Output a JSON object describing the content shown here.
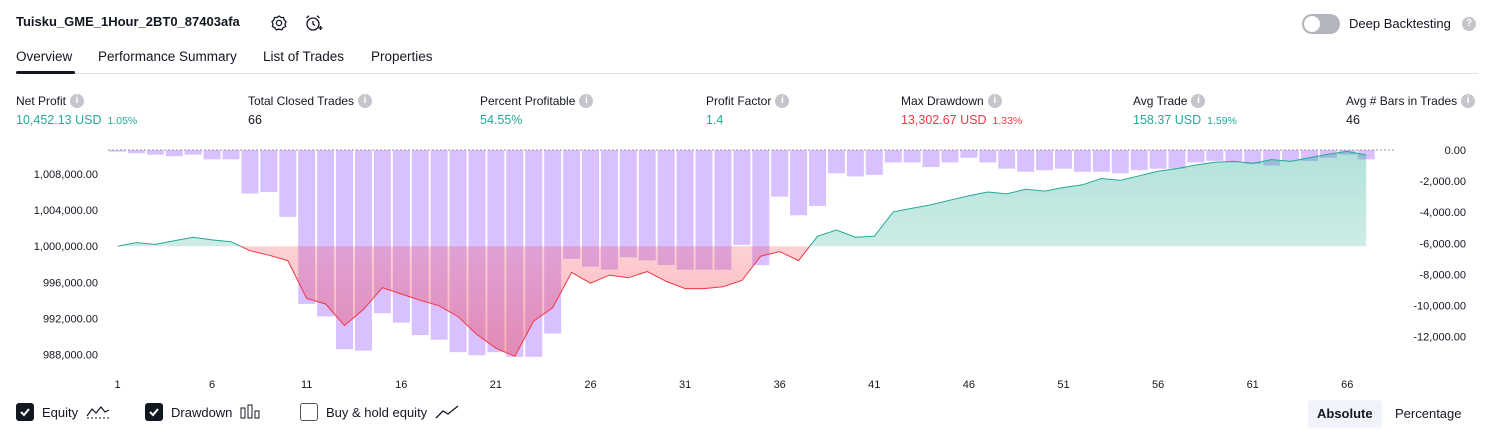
{
  "header": {
    "strategy_name": "Tuisku_GME_1Hour_2BT0_87403afa",
    "settings_icon": "gear-icon",
    "alert_icon": "alarm-clock-plus-icon",
    "deep_backtesting_label": "Deep Backtesting",
    "deep_backtesting_enabled": false,
    "help_glyph": "?"
  },
  "tabs": [
    {
      "label": "Overview",
      "active": true
    },
    {
      "label": "Performance Summary",
      "active": false
    },
    {
      "label": "List of Trades",
      "active": false
    },
    {
      "label": "Properties",
      "active": false
    }
  ],
  "metrics": [
    {
      "label": "Net Profit",
      "value": "10,452.13 USD",
      "pct": "1.05%",
      "color": "#22ab94"
    },
    {
      "label": "Total Closed Trades",
      "value": "66",
      "pct": "",
      "color": "#131722"
    },
    {
      "label": "Percent Profitable",
      "value": "54.55%",
      "pct": "",
      "color": "#22ab94"
    },
    {
      "label": "Profit Factor",
      "value": "1.4",
      "pct": "",
      "color": "#22ab94"
    },
    {
      "label": "Max Drawdown",
      "value": "13,302.67 USD",
      "pct": "1.33%",
      "color": "#f23645"
    },
    {
      "label": "Avg Trade",
      "value": "158.37 USD",
      "pct": "1.59%",
      "color": "#22ab94"
    },
    {
      "label": "Avg # Bars in Trades",
      "value": "46",
      "pct": "",
      "color": "#131722"
    }
  ],
  "chart_data": {
    "type": "line",
    "x_tick_labels": [
      "1",
      "6",
      "11",
      "16",
      "21",
      "26",
      "31",
      "36",
      "41",
      "46",
      "51",
      "56",
      "61",
      "66"
    ],
    "left_axis_ticks": [
      "1,008,000.00",
      "1,004,000.00",
      "1,000,000.00",
      "996,000.00",
      "992,000.00",
      "988,000.00"
    ],
    "right_axis_ticks": [
      "0.00",
      "-2,000.00",
      "-4,000.00",
      "-6,000.00",
      "-8,000.00",
      "-10,000.00",
      "-12,000.00"
    ],
    "left_ylim": [
      986000,
      1011000
    ],
    "right_ylim": [
      -13500,
      0
    ],
    "baseline": 1000000,
    "colors": {
      "equity_up": "#22ab94",
      "equity_down": "#f23645",
      "drawdown": "#c9a7ff"
    },
    "series": [
      {
        "name": "Equity",
        "x": [
          1,
          2,
          3,
          4,
          5,
          6,
          7,
          8,
          9,
          10,
          11,
          12,
          13,
          14,
          15,
          16,
          17,
          18,
          19,
          20,
          21,
          22,
          23,
          24,
          25,
          26,
          27,
          28,
          29,
          30,
          31,
          32,
          33,
          34,
          35,
          36,
          37,
          38,
          39,
          40,
          41,
          42,
          43,
          44,
          45,
          46,
          47,
          48,
          49,
          50,
          51,
          52,
          53,
          54,
          55,
          56,
          57,
          58,
          59,
          60,
          61,
          62,
          63,
          64,
          65,
          66,
          67
        ],
        "values": [
          1000000,
          1000400,
          1000200,
          1000600,
          1001000,
          1000700,
          1000500,
          999500,
          999000,
          998400,
          994200,
          993600,
          991200,
          993000,
          995400,
          994700,
          994000,
          993400,
          992200,
          990200,
          988700,
          987800,
          991700,
          993200,
          997100,
          995900,
          996800,
          996500,
          997200,
          996100,
          995300,
          995300,
          995500,
          996200,
          998900,
          999400,
          998400,
          1001100,
          1001800,
          1001000,
          1001100,
          1003800,
          1004200,
          1004600,
          1005100,
          1005600,
          1006000,
          1005800,
          1006300,
          1006100,
          1006500,
          1006800,
          1007500,
          1007300,
          1007800,
          1008300,
          1008600,
          1009000,
          1009300,
          1009400,
          1009200,
          1009600,
          1009400,
          1009800,
          1010200,
          1010500,
          1010100
        ]
      },
      {
        "name": "Drawdown",
        "x": [
          1,
          2,
          3,
          4,
          5,
          6,
          7,
          8,
          9,
          10,
          11,
          12,
          13,
          14,
          15,
          16,
          17,
          18,
          19,
          20,
          21,
          22,
          23,
          24,
          25,
          26,
          27,
          28,
          29,
          30,
          31,
          32,
          33,
          34,
          35,
          36,
          37,
          38,
          39,
          40,
          41,
          42,
          43,
          44,
          45,
          46,
          47,
          48,
          49,
          50,
          51,
          52,
          53,
          54,
          55,
          56,
          57,
          58,
          59,
          60,
          61,
          62,
          63,
          64,
          65,
          66,
          67
        ],
        "values": [
          -100,
          -200,
          -300,
          -400,
          -300,
          -600,
          -600,
          -2800,
          -2700,
          -4300,
          -9900,
          -10700,
          -12800,
          -12900,
          -10500,
          -11100,
          -11900,
          -12200,
          -13000,
          -13200,
          -13000,
          -13300,
          -13300,
          -11800,
          -7000,
          -7500,
          -7700,
          -6900,
          -7100,
          -7400,
          -7700,
          -7700,
          -7700,
          -6100,
          -7400,
          -3000,
          -4200,
          -3600,
          -1500,
          -1700,
          -1600,
          -800,
          -800,
          -1100,
          -800,
          -500,
          -800,
          -1200,
          -1400,
          -1300,
          -1200,
          -1400,
          -1400,
          -1500,
          -1300,
          -1200,
          -1200,
          -800,
          -700,
          -800,
          -900,
          -1000,
          -700,
          -700,
          -500,
          -300,
          -600
        ]
      }
    ]
  },
  "footer": {
    "equity_label": "Equity",
    "equity_checked": true,
    "drawdown_label": "Drawdown",
    "drawdown_checked": true,
    "buyhold_label": "Buy & hold equity",
    "buyhold_checked": false,
    "absolute_label": "Absolute",
    "percentage_label": "Percentage"
  }
}
